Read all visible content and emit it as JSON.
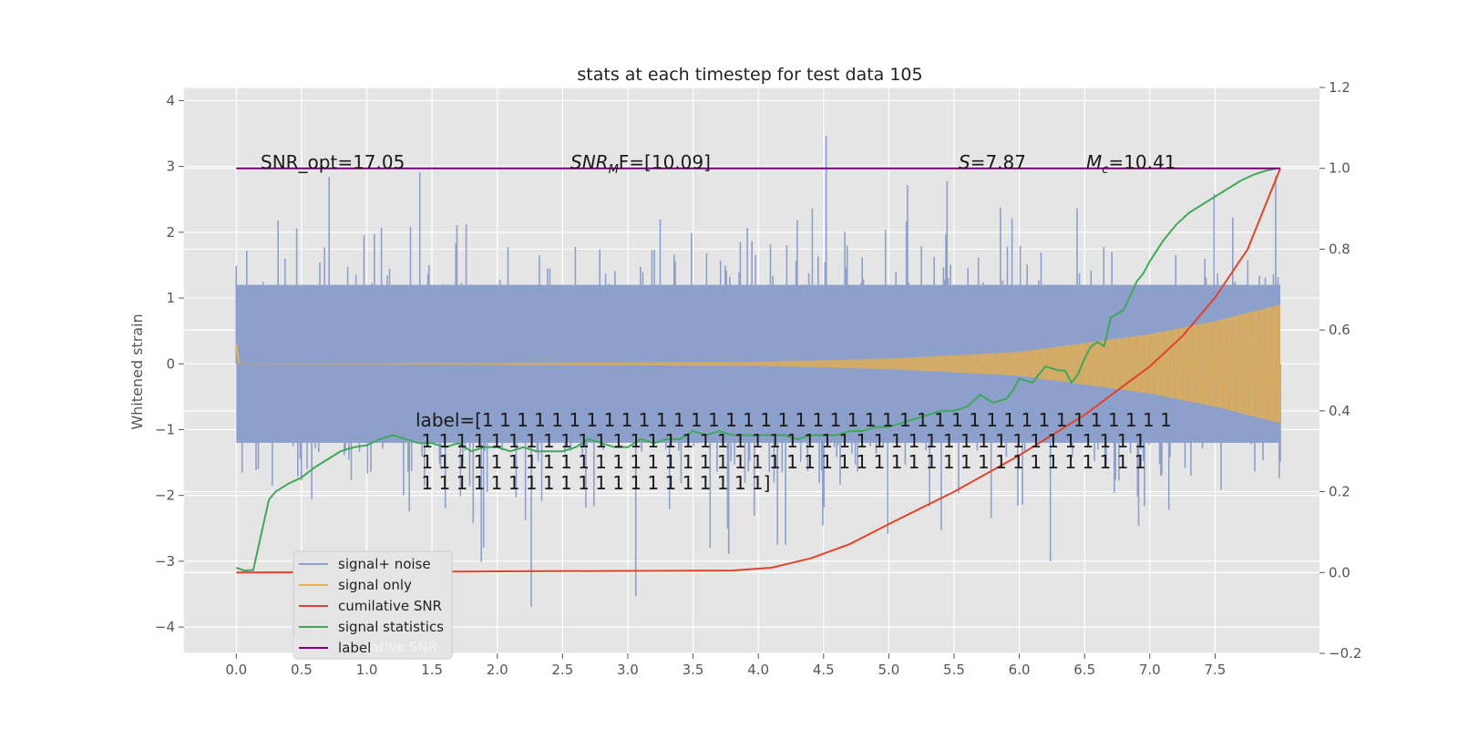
{
  "chart_data": {
    "type": "line",
    "title": "stats at each timestep for test data 105",
    "xlabel": "",
    "ylabel": "Whitened strain",
    "y2label": "",
    "xlim": [
      -0.4,
      8.3
    ],
    "ylim": [
      -4.4,
      4.2
    ],
    "y2lim": [
      -0.2,
      1.2
    ],
    "grid": true,
    "legend_position": "lower-left",
    "x_ticks": [
      "0.0",
      "0.5",
      "1.0",
      "1.5",
      "2.0",
      "2.5",
      "3.0",
      "3.5",
      "4.0",
      "4.5",
      "5.0",
      "5.5",
      "6.0",
      "6.5",
      "7.0",
      "7.5"
    ],
    "y_ticks": [
      "−4",
      "−3",
      "−2",
      "−1",
      "0",
      "1",
      "2",
      "3",
      "4"
    ],
    "y2_ticks": [
      "−0.2",
      "0.0",
      "0.2",
      "0.4",
      "0.6",
      "0.8",
      "1.0",
      "1.2"
    ],
    "colors": {
      "signal_noise": "#8da0cb",
      "signal_only": "#e8b04b",
      "cumulative_snr": "#e2432a",
      "signal_statistics": "#3fa85a",
      "label": "#7a0177",
      "axes_bg": "#e5e5e5",
      "grid": "#ffffff"
    },
    "annotations": {
      "snr_opt": "SNR_opt=17.05",
      "snr_mf": "SNR",
      "snr_mf_sub": "M",
      "snr_mf_rest": "F=[10.09]",
      "s_var": "S",
      "s_rest": "=7.87",
      "mc_var": "M",
      "mc_sub": "c",
      "mc_rest": "=10.41",
      "label_lines": [
        "label=[1 1 1 1 1 1 1 1 1 1 1 1 1 1 1 1 1 1 1 1 1 1 1 1 1 1 1 1 1 1 1 1 1 1 1 1 1 1 1 1",
        " 1 1 1 1 1 1 1 1 1 1 1 1 1 1 1 1 1 1 1 1 1 1 1 1 1 1 1 1 1 1 1 1 1 1 1 1 1 1 1 1 1 1",
        " 1 1 1 1 1 1 1 1 1 1 1 1 1 1 1 1 1 1 1 1 1 1 1 1 1 1 1 1 1 1 1 1 1 1 1 1 1 1 1 1 1 1",
        " 1 1 1 1 1 1 1 1 1 1 1 1 1 1 1 1 1 1 1 1]"
      ]
    },
    "legend": {
      "items": [
        "signal+ noise",
        "signal only",
        "cumilative SNR",
        "signal statistics",
        "label"
      ],
      "hidden_text": "cumilative SNR"
    },
    "series": [
      {
        "name": "signal+ noise",
        "axis": "left",
        "x_range": [
          0.0,
          8.0
        ],
        "envelope": [
          1.2,
          1.2
        ],
        "max_abs": 3.85
      },
      {
        "name": "signal only",
        "axis": "left",
        "x_range": [
          0.0,
          8.0
        ],
        "amplitude": {
          "x": [
            0.0,
            4.0,
            5.0,
            6.0,
            7.0,
            7.5,
            8.0
          ],
          "y": [
            0.0,
            0.03,
            0.08,
            0.18,
            0.45,
            0.65,
            0.9
          ]
        }
      },
      {
        "name": "cumilative SNR",
        "axis": "right",
        "x": [
          0.0,
          1.0,
          2.0,
          3.0,
          3.8,
          4.1,
          4.4,
          4.7,
          5.0,
          5.5,
          6.0,
          6.5,
          7.0,
          7.25,
          7.5,
          7.75,
          8.0
        ],
        "y": [
          0.0,
          0.001,
          0.003,
          0.004,
          0.005,
          0.012,
          0.035,
          0.07,
          0.12,
          0.2,
          0.29,
          0.39,
          0.51,
          0.585,
          0.68,
          0.8,
          1.0
        ]
      },
      {
        "name": "signal statistics",
        "axis": "right",
        "x": [
          0.0,
          0.06,
          0.13,
          0.25,
          0.3,
          0.4,
          0.5,
          0.6,
          0.65,
          0.7,
          0.8,
          0.9,
          1.0,
          1.1,
          1.2,
          1.3,
          1.4,
          1.5,
          1.6,
          1.7,
          1.8,
          1.9,
          2.0,
          2.1,
          2.2,
          2.3,
          2.4,
          2.5,
          2.6,
          2.7,
          2.8,
          2.9,
          3.0,
          3.1,
          3.2,
          3.3,
          3.4,
          3.5,
          3.6,
          3.7,
          3.8,
          3.9,
          4.0,
          4.1,
          4.2,
          4.3,
          4.4,
          4.5,
          4.6,
          4.7,
          4.8,
          4.9,
          5.0,
          5.1,
          5.2,
          5.3,
          5.4,
          5.5,
          5.6,
          5.7,
          5.8,
          5.9,
          5.95,
          6.0,
          6.1,
          6.15,
          6.2,
          6.3,
          6.35,
          6.4,
          6.45,
          6.5,
          6.55,
          6.6,
          6.65,
          6.7,
          6.8,
          6.9,
          6.95,
          7.0,
          7.1,
          7.2,
          7.3,
          7.4,
          7.5,
          7.6,
          7.7,
          7.8,
          7.9,
          7.98
        ],
        "y": [
          0.012,
          0.005,
          0.006,
          0.18,
          0.2,
          0.22,
          0.235,
          0.26,
          0.27,
          0.28,
          0.3,
          0.31,
          0.315,
          0.33,
          0.34,
          0.33,
          0.32,
          0.32,
          0.31,
          0.32,
          0.3,
          0.31,
          0.31,
          0.3,
          0.31,
          0.3,
          0.3,
          0.3,
          0.31,
          0.33,
          0.32,
          0.31,
          0.31,
          0.33,
          0.32,
          0.33,
          0.33,
          0.35,
          0.34,
          0.35,
          0.34,
          0.34,
          0.34,
          0.34,
          0.34,
          0.33,
          0.34,
          0.34,
          0.34,
          0.35,
          0.35,
          0.36,
          0.36,
          0.37,
          0.38,
          0.39,
          0.4,
          0.4,
          0.41,
          0.44,
          0.42,
          0.43,
          0.45,
          0.48,
          0.47,
          0.49,
          0.51,
          0.5,
          0.5,
          0.47,
          0.49,
          0.53,
          0.56,
          0.57,
          0.56,
          0.63,
          0.65,
          0.72,
          0.74,
          0.77,
          0.82,
          0.86,
          0.89,
          0.91,
          0.93,
          0.95,
          0.97,
          0.985,
          0.995,
          1.0
        ]
      },
      {
        "name": "label",
        "axis": "right",
        "x": [
          0.0,
          8.0
        ],
        "y": [
          1.0,
          1.0
        ]
      }
    ]
  }
}
